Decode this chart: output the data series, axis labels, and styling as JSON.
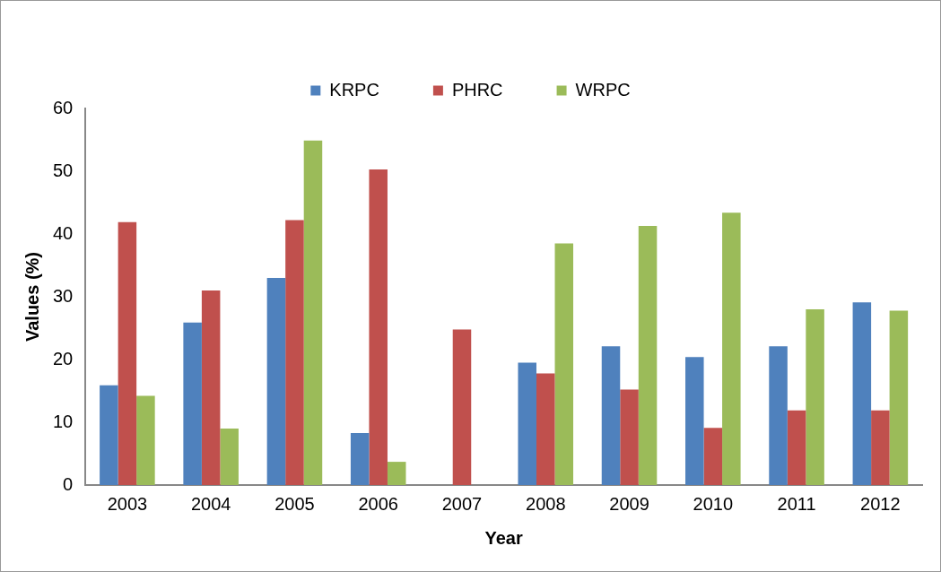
{
  "chart_data": {
    "type": "bar",
    "xlabel": "Year",
    "ylabel": "Values (%)",
    "categories": [
      "2003",
      "2004",
      "2005",
      "2006",
      "2007",
      "2008",
      "2009",
      "2010",
      "2011",
      "2012"
    ],
    "series": [
      {
        "name": "KRPC",
        "color": "#4f81bd",
        "values": [
          15.9,
          25.9,
          33.0,
          8.3,
          0,
          19.5,
          22.1,
          20.4,
          22.1,
          29.1
        ]
      },
      {
        "name": "PHRC",
        "color": "#c0504d",
        "values": [
          41.9,
          31.0,
          42.2,
          50.3,
          24.8,
          17.8,
          15.2,
          9.1,
          11.9,
          11.9
        ]
      },
      {
        "name": "WRPC",
        "color": "#9bbb59",
        "values": [
          14.2,
          9.0,
          54.9,
          3.7,
          0,
          38.5,
          41.3,
          43.4,
          28.0,
          27.8
        ]
      }
    ],
    "ylim": [
      0,
      60
    ],
    "yticks": [
      0,
      10,
      20,
      30,
      40,
      50,
      60
    ],
    "grid": false,
    "legend": "top"
  }
}
